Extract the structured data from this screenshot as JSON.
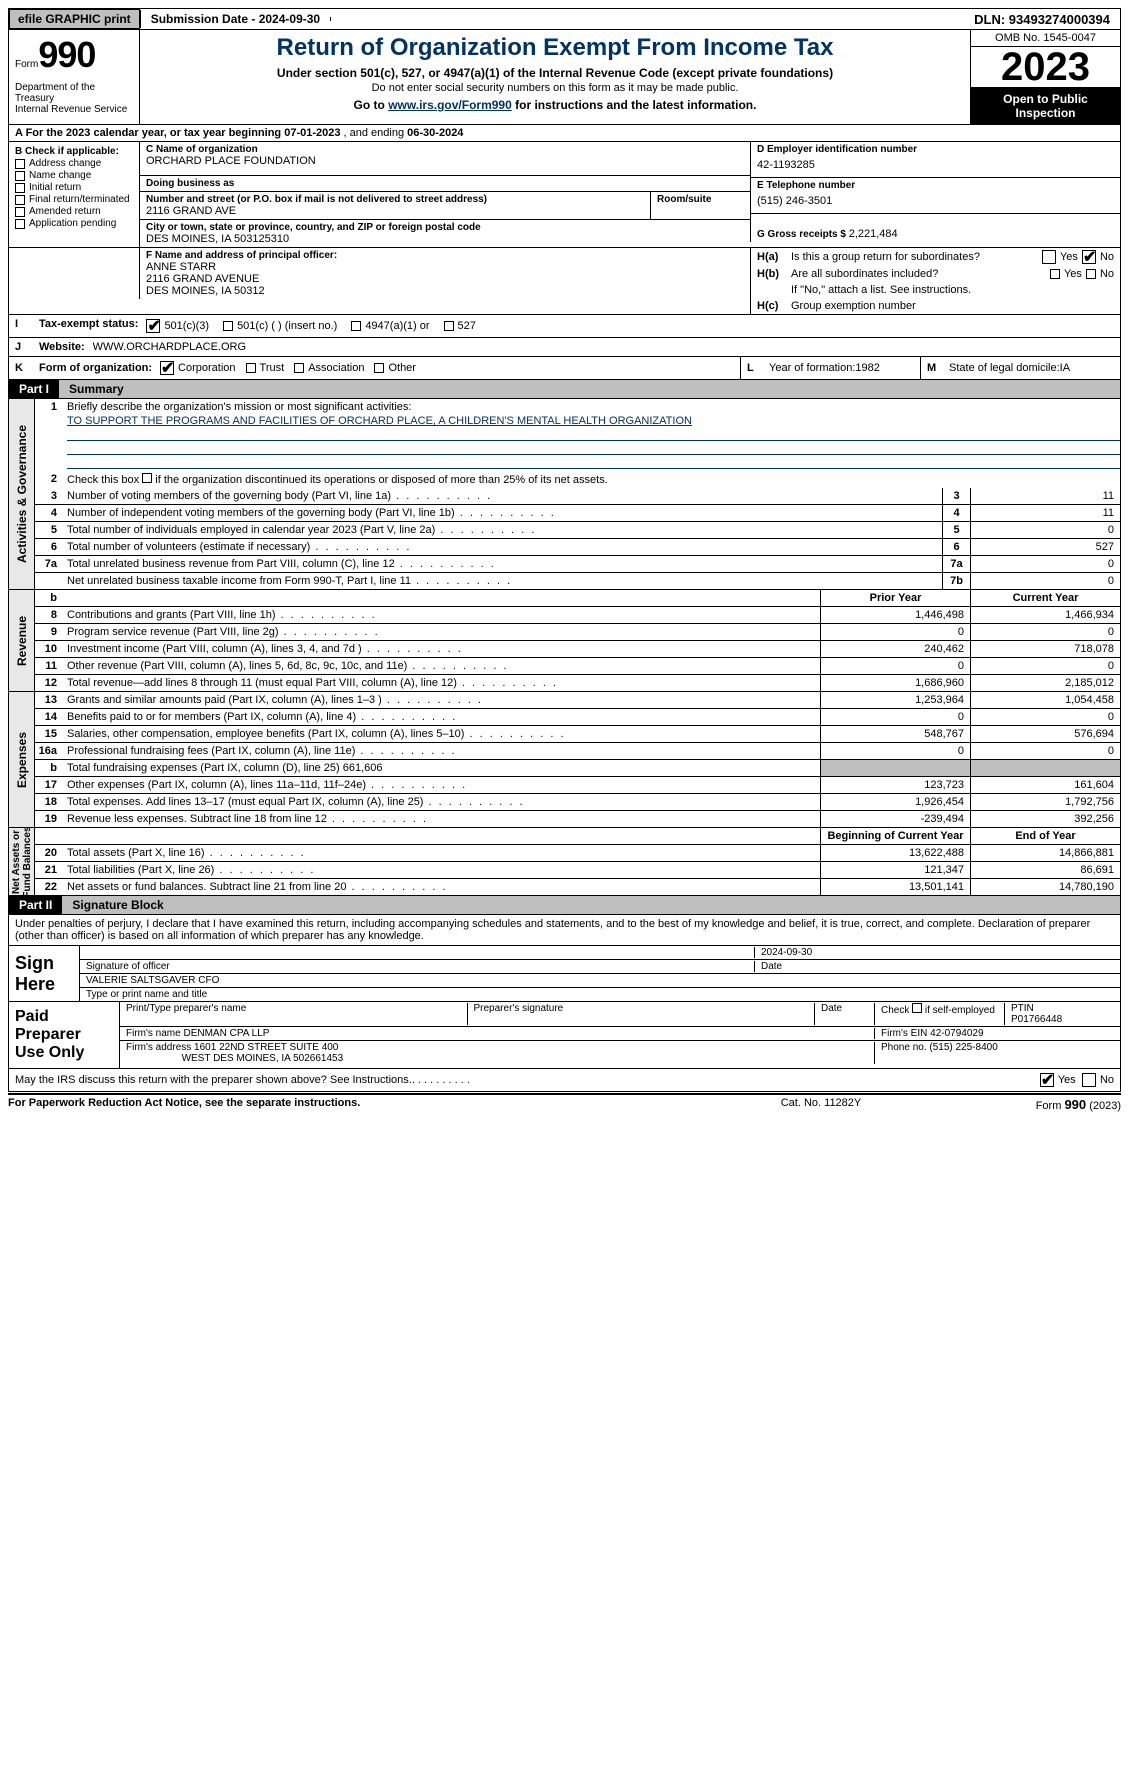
{
  "topbar": {
    "efile": "efile GRAPHIC print",
    "submission": "Submission Date - 2024-09-30",
    "dln": "DLN: 93493274000394"
  },
  "header": {
    "form_word": "Form",
    "form_num": "990",
    "title": "Return of Organization Exempt From Income Tax",
    "subtitle": "Under section 501(c), 527, or 4947(a)(1) of the Internal Revenue Code (except private foundations)",
    "no_ssn": "Do not enter social security numbers on this form as it may be made public.",
    "goto_pre": "Go to ",
    "goto_link": "www.irs.gov/Form990",
    "goto_post": " for instructions and the latest information.",
    "dept": "Department of the Treasury\nInternal Revenue Service",
    "omb": "OMB No. 1545-0047",
    "year": "2023",
    "inspect": "Open to Public Inspection"
  },
  "row_a": {
    "text_a": "A  For the 2023 calendar year, or tax year beginning ",
    "begin": "07-01-2023",
    "mid": "   , and ending ",
    "end": "06-30-2024"
  },
  "col_b": {
    "label": "B Check if applicable:",
    "items": [
      "Address change",
      "Name change",
      "Initial return",
      "Final return/terminated",
      "Amended return",
      "Application pending"
    ]
  },
  "col_c": {
    "name_label": "C Name of organization",
    "name": "ORCHARD PLACE FOUNDATION",
    "dba_label": "Doing business as",
    "dba": "",
    "addr_label": "Number and street (or P.O. box if mail is not delivered to street address)",
    "room_label": "Room/suite",
    "addr": "2116 GRAND AVE",
    "city_label": "City or town, state or province, country, and ZIP or foreign postal code",
    "city": "DES MOINES, IA  503125310"
  },
  "col_d": {
    "label": "D Employer identification number",
    "val": "42-1193285"
  },
  "col_e": {
    "label": "E Telephone number",
    "val": "(515) 246-3501"
  },
  "col_g": {
    "label": "G Gross receipts $ ",
    "val": "2,221,484"
  },
  "col_f": {
    "label": "F  Name and address of principal officer:",
    "line1": "ANNE STARR",
    "line2": "2116 GRAND AVENUE",
    "line3": "DES MOINES, IA  50312"
  },
  "col_h": {
    "a_label": "H(a)",
    "a_text": "Is this a group return for subordinates?",
    "b_label": "H(b)",
    "b_text": "Are all subordinates included?",
    "b_note": "If \"No,\" attach a list. See instructions.",
    "c_label": "H(c)",
    "c_text": "Group exemption number  ",
    "yes": "Yes",
    "no": "No"
  },
  "row_i": {
    "label": "I",
    "text": "Tax-exempt status:",
    "opt1": "501(c)(3)",
    "opt2": "501(c) (   ) (insert no.)",
    "opt3": "4947(a)(1) or",
    "opt4": "527"
  },
  "row_j": {
    "label": "J",
    "text": "Website: ",
    "val": "WWW.ORCHARDPLACE.ORG"
  },
  "row_k": {
    "label": "K",
    "text": "Form of organization:",
    "opts": [
      "Corporation",
      "Trust",
      "Association",
      "Other"
    ],
    "l_label": "L",
    "l_text": "Year of formation: ",
    "l_val": "1982",
    "m_label": "M",
    "m_text": "State of legal domicile: ",
    "m_val": "IA"
  },
  "part1": {
    "num": "Part I",
    "title": "Summary"
  },
  "sidetabs": {
    "gov": "Activities & Governance",
    "rev": "Revenue",
    "exp": "Expenses",
    "net": "Net Assets or\nFund Balances"
  },
  "gov": {
    "l1_num": "1",
    "l1_text": "Briefly describe the organization's mission or most significant activities:",
    "l1_mission": "TO SUPPORT THE PROGRAMS AND FACILITIES OF ORCHARD PLACE, A CHILDREN'S MENTAL HEALTH ORGANIZATION",
    "l2_num": "2",
    "l2_text": "Check this box        if the organization discontinued its operations or disposed of more than 25% of its net assets.",
    "lines": [
      {
        "n": "3",
        "d": "Number of voting members of the governing body (Part VI, line 1a)",
        "b": "3",
        "v": "11"
      },
      {
        "n": "4",
        "d": "Number of independent voting members of the governing body (Part VI, line 1b)",
        "b": "4",
        "v": "11"
      },
      {
        "n": "5",
        "d": "Total number of individuals employed in calendar year 2023 (Part V, line 2a)",
        "b": "5",
        "v": "0"
      },
      {
        "n": "6",
        "d": "Total number of volunteers (estimate if necessary)",
        "b": "6",
        "v": "527"
      },
      {
        "n": "7a",
        "d": "Total unrelated business revenue from Part VIII, column (C), line 12",
        "b": "7a",
        "v": "0"
      },
      {
        "n": "",
        "d": "Net unrelated business taxable income from Form 990-T, Part I, line 11",
        "b": "7b",
        "v": "0"
      }
    ]
  },
  "pycy": {
    "b": "b",
    "prior": "Prior Year",
    "current": "Current Year"
  },
  "rev": [
    {
      "n": "8",
      "d": "Contributions and grants (Part VIII, line 1h)",
      "p": "1,446,498",
      "c": "1,466,934"
    },
    {
      "n": "9",
      "d": "Program service revenue (Part VIII, line 2g)",
      "p": "0",
      "c": "0"
    },
    {
      "n": "10",
      "d": "Investment income (Part VIII, column (A), lines 3, 4, and 7d )",
      "p": "240,462",
      "c": "718,078"
    },
    {
      "n": "11",
      "d": "Other revenue (Part VIII, column (A), lines 5, 6d, 8c, 9c, 10c, and 11e)",
      "p": "0",
      "c": "0"
    },
    {
      "n": "12",
      "d": "Total revenue—add lines 8 through 11 (must equal Part VIII, column (A), line 12)",
      "p": "1,686,960",
      "c": "2,185,012"
    }
  ],
  "exp": [
    {
      "n": "13",
      "d": "Grants and similar amounts paid (Part IX, column (A), lines 1–3 )",
      "p": "1,253,964",
      "c": "1,054,458"
    },
    {
      "n": "14",
      "d": "Benefits paid to or for members (Part IX, column (A), line 4)",
      "p": "0",
      "c": "0"
    },
    {
      "n": "15",
      "d": "Salaries, other compensation, employee benefits (Part IX, column (A), lines 5–10)",
      "p": "548,767",
      "c": "576,694"
    },
    {
      "n": "16a",
      "d": "Professional fundraising fees (Part IX, column (A), line 11e)",
      "p": "0",
      "c": "0"
    },
    {
      "n": "b",
      "d": "Total fundraising expenses (Part IX, column (D), line 25) 661,606",
      "p": "",
      "c": "",
      "shade": true
    },
    {
      "n": "17",
      "d": "Other expenses (Part IX, column (A), lines 11a–11d, 11f–24e)",
      "p": "123,723",
      "c": "161,604"
    },
    {
      "n": "18",
      "d": "Total expenses. Add lines 13–17 (must equal Part IX, column (A), line 25)",
      "p": "1,926,454",
      "c": "1,792,756"
    },
    {
      "n": "19",
      "d": "Revenue less expenses. Subtract line 18 from line 12",
      "p": "-239,494",
      "c": "392,256"
    }
  ],
  "net_hdr": {
    "prior": "Beginning of Current Year",
    "current": "End of Year"
  },
  "net": [
    {
      "n": "20",
      "d": "Total assets (Part X, line 16)",
      "p": "13,622,488",
      "c": "14,866,881"
    },
    {
      "n": "21",
      "d": "Total liabilities (Part X, line 26)",
      "p": "121,347",
      "c": "86,691"
    },
    {
      "n": "22",
      "d": "Net assets or fund balances. Subtract line 21 from line 20",
      "p": "13,501,141",
      "c": "14,780,190"
    }
  ],
  "part2": {
    "num": "Part II",
    "title": "Signature Block"
  },
  "sig": {
    "perjury": "Under penalties of perjury, I declare that I have examined this return, including accompanying schedules and statements, and to the best of my knowledge and belief, it is true, correct, and complete. Declaration of preparer (other than officer) is based on all information of which preparer has any knowledge.",
    "sign_here": "Sign Here",
    "sig_officer_label": "Signature of officer",
    "sig_date": "2024-09-30",
    "date_label": "Date",
    "officer_name": "VALERIE SALTSGAVER  CFO",
    "type_label": "Type or print name and title",
    "paid": "Paid Preparer Use Only",
    "prep_name_label": "Print/Type preparer's name",
    "prep_sig_label": "Preparer's signature",
    "check_if": "Check          if self-employed",
    "ptin_label": "PTIN",
    "ptin": "P01766448",
    "firm_name_label": "Firm's name     ",
    "firm_name": "DENMAN CPA LLP",
    "firm_ein_label": "Firm's EIN  ",
    "firm_ein": "42-0794029",
    "firm_addr_label": "Firm's address ",
    "firm_addr1": "1601 22ND STREET SUITE 400",
    "firm_addr2": "WEST DES MOINES, IA  502661453",
    "phone_label": "Phone no. ",
    "phone": "(515) 225-8400",
    "discuss": "May the IRS discuss this return with the preparer shown above? See Instructions.",
    "yes": "Yes",
    "no": "No"
  },
  "footer": {
    "left": "For Paperwork Reduction Act Notice, see the separate instructions.",
    "mid": "Cat. No. 11282Y",
    "right_a": "Form ",
    "right_b": "990",
    "right_c": " (2023)"
  },
  "colors": {
    "title": "#003366",
    "gray": "#bfbfbf",
    "sidetab_bg": "#e8e8e8"
  }
}
